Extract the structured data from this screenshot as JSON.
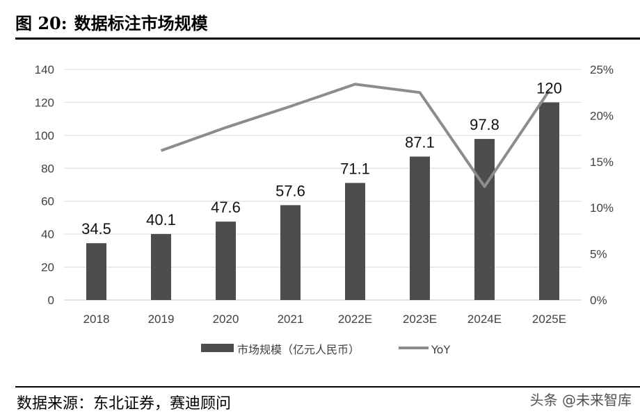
{
  "header": {
    "figure_number": "图 20:",
    "title": "数据标注市场规模"
  },
  "footer": {
    "source": "数据来源：东北证券，赛迪顾问",
    "watermark": "头条 @未来智库"
  },
  "chart_data": {
    "type": "bar",
    "title": "数据标注市场规模",
    "categories": [
      "2018",
      "2019",
      "2020",
      "2021",
      "2022E",
      "2023E",
      "2024E",
      "2025E"
    ],
    "series": [
      {
        "name": "市场规模（亿元人民币）",
        "type": "bar",
        "axis": "left",
        "color": "#4d4d4d",
        "values": [
          34.5,
          40.1,
          47.6,
          57.6,
          71.1,
          87.1,
          97.8,
          120
        ],
        "labels": [
          "34.5",
          "40.1",
          "47.6",
          "57.6",
          "71.1",
          "87.1",
          "97.8",
          "120"
        ]
      },
      {
        "name": "YoY",
        "type": "line",
        "axis": "right",
        "color": "#8c8c8c",
        "values": [
          null,
          16.2,
          18.7,
          21.0,
          23.4,
          22.5,
          12.3,
          22.7
        ]
      }
    ],
    "left_axis": {
      "min": 0,
      "max": 140,
      "ticks": [
        "0",
        "20",
        "40",
        "60",
        "80",
        "100",
        "120",
        "140"
      ]
    },
    "right_axis": {
      "min": 0,
      "max": 25,
      "ticks": [
        "0%",
        "5%",
        "10%",
        "15%",
        "20%",
        "25%"
      ]
    },
    "grid": true,
    "legend_position": "bottom"
  }
}
